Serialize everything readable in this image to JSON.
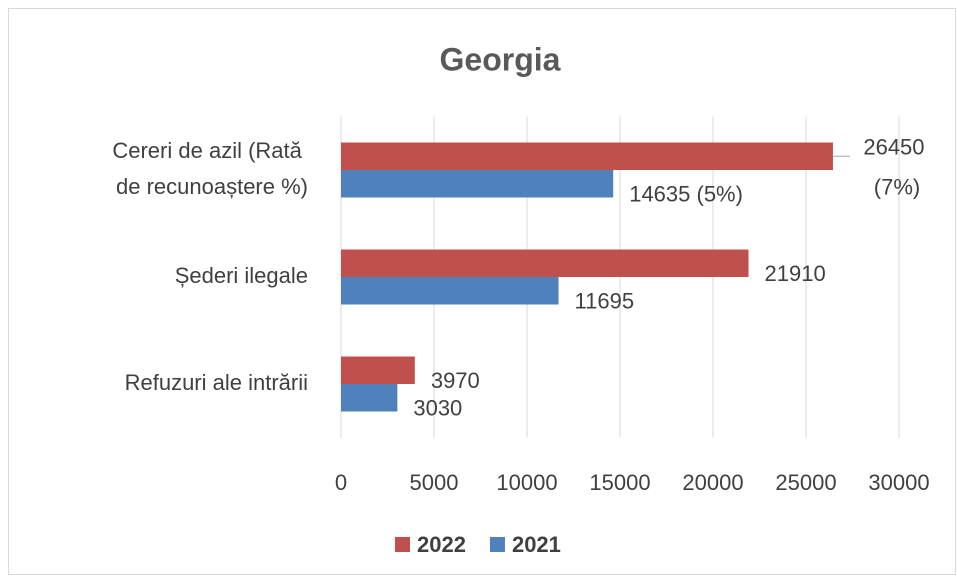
{
  "chart_data": {
    "type": "bar",
    "orientation": "horizontal",
    "title": "Georgia",
    "categories": [
      "Cereri de azil (Rată de recunoaștere %)",
      "Șederi ilegale",
      "Refuzuri ale intrării"
    ],
    "series": [
      {
        "name": "2022",
        "color": "#c0504d",
        "values": [
          26450,
          21910,
          3970
        ],
        "value_labels": [
          "26450 (7%)",
          "21910",
          "3970"
        ]
      },
      {
        "name": "2021",
        "color": "#4f81bd",
        "values": [
          14635,
          11695,
          3030
        ],
        "value_labels": [
          "14635 (5%)",
          "11695",
          "3030"
        ]
      }
    ],
    "xlim": [
      0,
      30000
    ],
    "xticks": [
      0,
      5000,
      10000,
      15000,
      20000,
      25000,
      30000
    ],
    "grid": true,
    "legend": "bottom"
  }
}
